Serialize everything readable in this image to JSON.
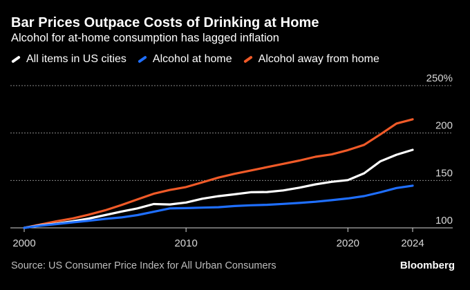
{
  "title": "Bar Prices Outpace Costs of Drinking at Home",
  "subtitle": "Alcohol for at-home consumption has lagged inflation",
  "source": "Source: US Consumer Price Index for All Urban Consumers",
  "brand": "Bloomberg",
  "chart_data": {
    "type": "line",
    "title": "Bar Prices Outpace Costs of Drinking at Home",
    "subtitle": "Alcohol for at-home consumption has lagged inflation",
    "xlabel": "",
    "ylabel": "",
    "xlim": [
      2000,
      2024.6
    ],
    "ylim": [
      100,
      250
    ],
    "y_unit": "%",
    "grid": true,
    "legend_position": "top-left",
    "x_ticks": [
      "2000",
      "2010",
      "2020",
      "2024"
    ],
    "y_ticks": [
      "100",
      "150",
      "200",
      "250%"
    ],
    "series": [
      {
        "name": "All items in US cities",
        "color": "#ffffff",
        "x": [
          2000,
          2001,
          2002,
          2003,
          2004,
          2005,
          2006,
          2007,
          2008,
          2009,
          2010,
          2011,
          2012,
          2013,
          2014,
          2015,
          2016,
          2017,
          2018,
          2019,
          2020,
          2021,
          2022,
          2023,
          2024
        ],
        "values": [
          100,
          102.8,
          104.5,
          106.9,
          109.8,
          113.5,
          117.2,
          120.5,
          125.1,
          124.7,
          126.7,
          130.7,
          133.4,
          135.4,
          137.6,
          137.8,
          139.5,
          142.4,
          145.9,
          148.6,
          150.4,
          157.5,
          170.1,
          177.1,
          182.3
        ]
      },
      {
        "name": "Alcohol at home",
        "color": "#1f6fff",
        "x": [
          2000,
          2001,
          2002,
          2003,
          2004,
          2005,
          2006,
          2007,
          2008,
          2009,
          2010,
          2011,
          2012,
          2013,
          2014,
          2015,
          2016,
          2017,
          2018,
          2019,
          2020,
          2021,
          2022,
          2023,
          2024
        ],
        "values": [
          100,
          102.3,
          104,
          105.8,
          107.5,
          109.5,
          111,
          113.5,
          117,
          120.5,
          120.8,
          121.3,
          121.8,
          123,
          123.8,
          124.3,
          125.3,
          126.3,
          127.5,
          129.2,
          131,
          133.5,
          137.5,
          142,
          144.5
        ]
      },
      {
        "name": "Alcohol away from home",
        "color": "#f05a28",
        "x": [
          2000,
          2001,
          2002,
          2003,
          2004,
          2005,
          2006,
          2007,
          2008,
          2009,
          2010,
          2011,
          2012,
          2013,
          2014,
          2015,
          2016,
          2017,
          2018,
          2019,
          2020,
          2021,
          2022,
          2023,
          2024
        ],
        "values": [
          100,
          103.5,
          107,
          110,
          114,
          118.5,
          124,
          130,
          136,
          140,
          143,
          148,
          153,
          157,
          160.5,
          164,
          167.5,
          171,
          175,
          177.5,
          182,
          187.5,
          198.5,
          210,
          214.5
        ]
      }
    ]
  }
}
